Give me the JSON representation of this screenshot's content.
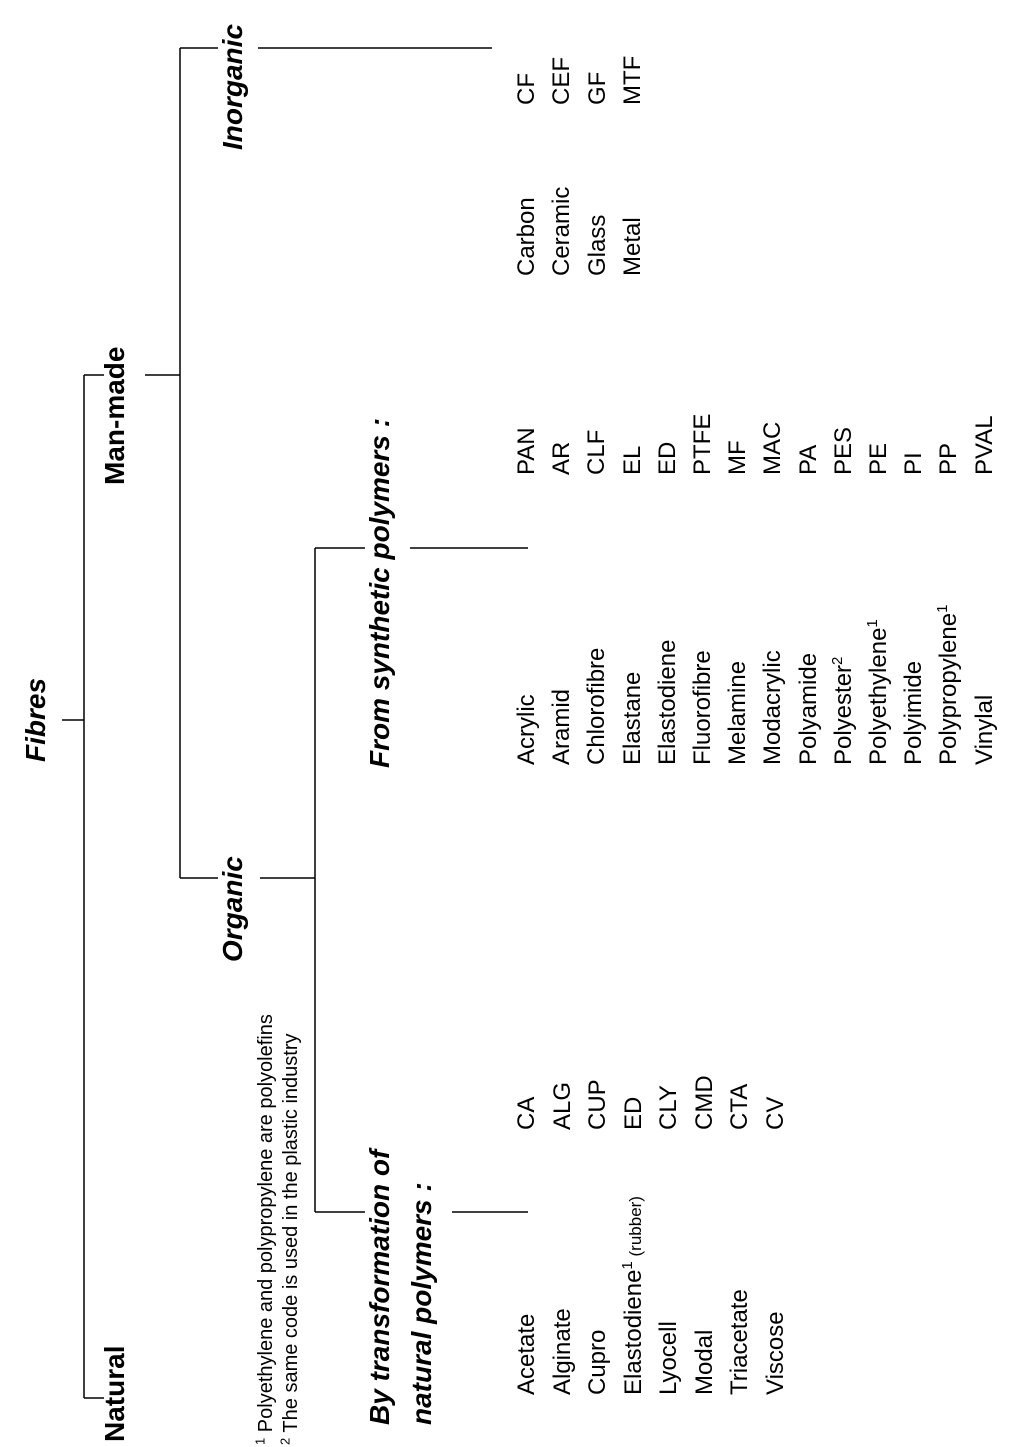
{
  "title": "Fibres",
  "branches": {
    "natural": "Natural",
    "man_made": "Man-made",
    "organic": "Organic",
    "inorganic": "Inorganic",
    "transformation_line1": "By transformation of",
    "transformation_line2": "natural polymers :",
    "synthetic": "From synthetic polymers :"
  },
  "natural_polymer_fibres": [
    {
      "name": "Acetate",
      "code": "CA"
    },
    {
      "name": "Alginate",
      "code": "ALG"
    },
    {
      "name": "Cupro",
      "code": "CUP"
    },
    {
      "name": "Elastodiene",
      "sup": "1",
      "note": "(rubber)",
      "code": "ED"
    },
    {
      "name": "Lyocell",
      "code": "CLY"
    },
    {
      "name": "Modal",
      "code": "CMD"
    },
    {
      "name": "Triacetate",
      "code": "CTA"
    },
    {
      "name": "Viscose",
      "code": "CV"
    }
  ],
  "synthetic_polymer_fibres": [
    {
      "name": "Acrylic",
      "code": "PAN"
    },
    {
      "name": "Aramid",
      "code": "AR"
    },
    {
      "name": "Chlorofibre",
      "code": "CLF"
    },
    {
      "name": "Elastane",
      "code": "EL"
    },
    {
      "name": "Elastodiene",
      "code": "ED"
    },
    {
      "name": "Fluorofibre",
      "code": "PTFE"
    },
    {
      "name": "Melamine",
      "code": "MF"
    },
    {
      "name": "Modacrylic",
      "code": "MAC"
    },
    {
      "name": "Polyamide",
      "code": "PA"
    },
    {
      "name": "Polyester",
      "sup": "2",
      "code": "PES"
    },
    {
      "name": "Polyethylene",
      "sup": "1",
      "code": "PE"
    },
    {
      "name": "Polyimide",
      "code": "PI"
    },
    {
      "name": "Polypropylene",
      "sup": "1",
      "code": "PP"
    },
    {
      "name": "Vinylal",
      "code": "PVAL"
    }
  ],
  "inorganic_fibres": [
    {
      "name": "Carbon",
      "code": "CF"
    },
    {
      "name": "Ceramic",
      "code": "CEF"
    },
    {
      "name": "Glass",
      "code": "GF"
    },
    {
      "name": "Metal",
      "code": "MTF"
    }
  ],
  "footnotes": [
    {
      "mark": "1",
      "text": "Polyethylene and  polypropylene are polyolefins"
    },
    {
      "mark": "2",
      "text": "The same code is used in the plastic industry"
    }
  ]
}
